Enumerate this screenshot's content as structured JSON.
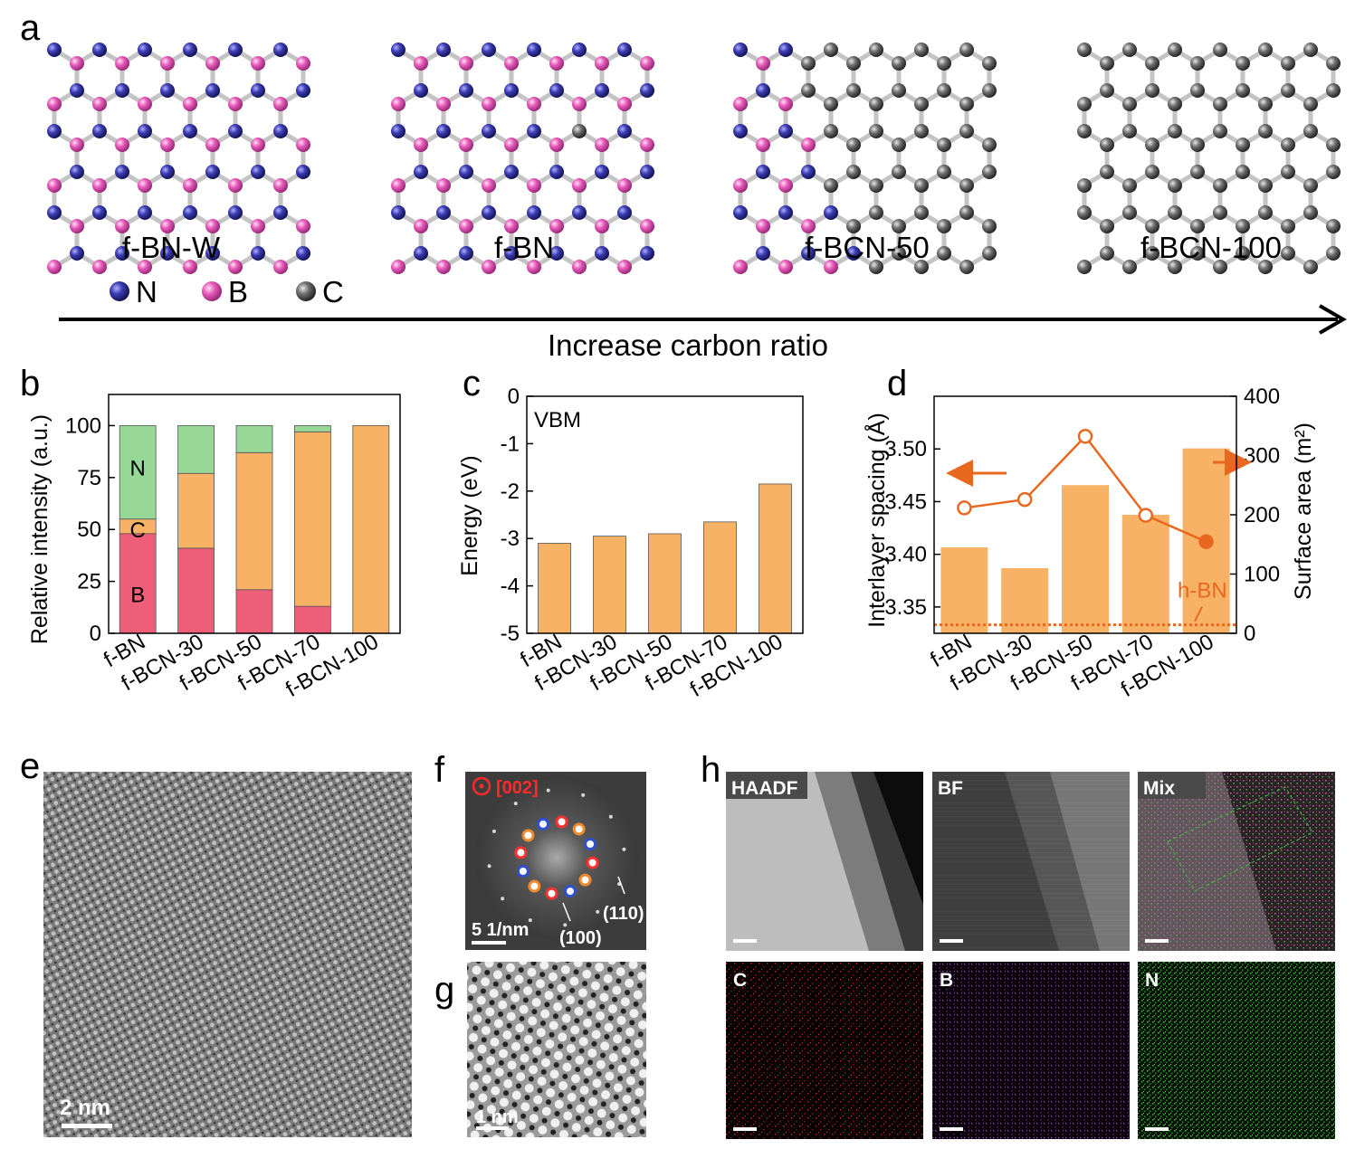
{
  "panel_letters": {
    "a": "a",
    "b": "b",
    "c": "c",
    "d": "d",
    "e": "e",
    "f": "f",
    "g": "g",
    "h": "h"
  },
  "colors": {
    "N": "#3c3cb4",
    "B": "#e85cbc",
    "C": "#707070",
    "orange": "#f7b266",
    "green": "#97d897",
    "red": "#ef5e78",
    "line": "#e8681f"
  },
  "panel_a": {
    "structures": [
      {
        "name": "f-BN-W"
      },
      {
        "name": "f-BN"
      },
      {
        "name": "f-BCN-50"
      },
      {
        "name": "f-BCN-100"
      }
    ],
    "legend": [
      {
        "symbol": "N",
        "label": "N"
      },
      {
        "symbol": "B",
        "label": "B"
      },
      {
        "symbol": "C",
        "label": "C"
      }
    ],
    "arrow_label": "Increase carbon ratio"
  },
  "chart_data": [
    {
      "id": "b",
      "type": "bar",
      "stacked": true,
      "categories": [
        "f-BN",
        "f-BCN-30",
        "f-BCN-50",
        "f-BCN-70",
        "f-BCN-100"
      ],
      "series": [
        {
          "name": "B",
          "color": "#ef5e78",
          "values": [
            48,
            41,
            21,
            13,
            0
          ]
        },
        {
          "name": "C",
          "color": "#f7b266",
          "values": [
            7,
            36,
            66,
            84,
            100
          ]
        },
        {
          "name": "N",
          "color": "#97d897",
          "values": [
            45,
            23,
            13,
            3,
            0
          ]
        }
      ],
      "ylabel": "Relative intensity (a.u.)",
      "ylim": [
        0,
        115
      ],
      "yticks": [
        "0",
        "25",
        "50",
        "75",
        "100"
      ],
      "inline_labels": [
        {
          "text": "N",
          "category": 0,
          "y": 80
        },
        {
          "text": "C",
          "category": 0,
          "y": 50
        },
        {
          "text": "B",
          "category": 0,
          "y": 19
        }
      ]
    },
    {
      "id": "c",
      "type": "bar",
      "categories": [
        "f-BN",
        "f-BCN-30",
        "f-BCN-50",
        "f-BCN-70",
        "f-BCN-100"
      ],
      "values": [
        -3.1,
        -2.95,
        -2.9,
        -2.65,
        -1.85
      ],
      "ylabel": "Energy (eV)",
      "ylim": [
        -5,
        0
      ],
      "yticks": [
        "0",
        "-1",
        "-2",
        "-3",
        "-4",
        "-5"
      ],
      "annotation": "VBM"
    },
    {
      "id": "d",
      "type": "bar+line",
      "categories": [
        "f-BN",
        "f-BCN-30",
        "f-BCN-50",
        "f-BCN-70",
        "f-BCN-100"
      ],
      "bars": {
        "axis": "right",
        "values": [
          145,
          110,
          250,
          200,
          312
        ]
      },
      "line": {
        "axis": "left",
        "values": [
          3.444,
          3.452,
          3.512,
          3.437,
          3.412
        ]
      },
      "reference": {
        "label": "h-BN",
        "value": 3.333
      },
      "ylabel_left": "Interlayer spacing (Å)",
      "ylabel_right": "Surface area (m²)",
      "ylim_left": [
        3.325,
        3.55
      ],
      "yticks_left": [
        "3.35",
        "3.40",
        "3.45",
        "3.50"
      ],
      "ylim_right": [
        0,
        400
      ],
      "yticks_right": [
        "0",
        "100",
        "200",
        "300",
        "400"
      ]
    }
  ],
  "panel_e": {
    "scale": "2 nm"
  },
  "panel_f": {
    "zone": "[002]",
    "scale": "5 1/nm",
    "spots": [
      "(110)",
      "(100)"
    ]
  },
  "panel_g": {
    "scale": "1 nm"
  },
  "panel_h": {
    "maps": [
      {
        "label": "HAADF"
      },
      {
        "label": "BF"
      },
      {
        "label": "Mix"
      },
      {
        "label": "C"
      },
      {
        "label": "B"
      },
      {
        "label": "N"
      }
    ]
  }
}
